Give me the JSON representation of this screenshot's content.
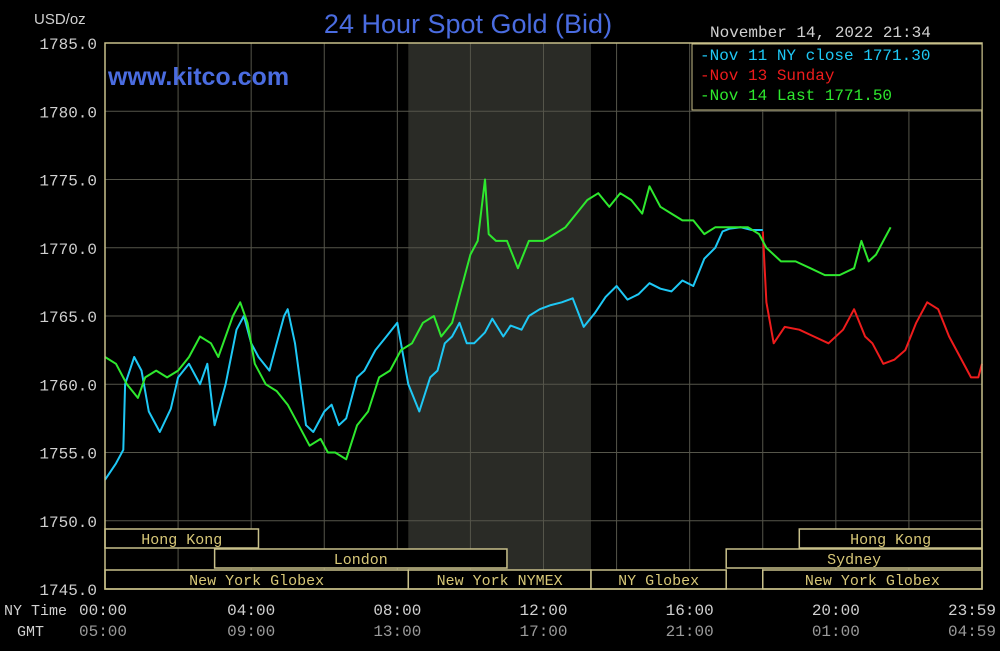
{
  "chart_data": {
    "type": "line",
    "title": "24 Hour Spot Gold (Bid)",
    "unit": "USD/oz",
    "watermark": "www.kitco.com",
    "timestamp": "November 14, 2022 21:34",
    "ylim": [
      1745,
      1785
    ],
    "ytick_labels": [
      "1785.0",
      "1780.0",
      "1775.0",
      "1770.0",
      "1765.0",
      "1760.0",
      "1755.0",
      "1750.0",
      "1745.0"
    ],
    "yticks": [
      1785,
      1780,
      1775,
      1770,
      1765,
      1760,
      1755,
      1750,
      1745
    ],
    "xlim": [
      0,
      24
    ],
    "xticks": [
      0,
      4,
      8,
      12,
      16,
      20,
      24
    ],
    "xtick_labels_ny": [
      "00:00",
      "04:00",
      "08:00",
      "12:00",
      "16:00",
      "20:00",
      "23:59"
    ],
    "xtick_labels_gmt": [
      "05:00",
      "09:00",
      "13:00",
      "17:00",
      "21:00",
      "01:00",
      "04:59"
    ],
    "axis_label_ny": "NY Time",
    "axis_label_gmt": "GMT",
    "legend_position": "top-right",
    "grid": true,
    "colors": {
      "background": "#000000",
      "frame": "#c8c08a",
      "grid": "#55554a",
      "shade": "#2a2b26",
      "title": "#4a6ce0",
      "text": "#d0d0d0"
    },
    "shaded_x": [
      8.3,
      13.3
    ],
    "series": [
      {
        "name": "Nov 11 NY close 1771.30",
        "color": "#1ec8f5",
        "x": [
          0,
          0.3,
          0.5,
          0.55,
          0.8,
          1.0,
          1.2,
          1.5,
          1.8,
          2.0,
          2.3,
          2.6,
          2.8,
          3.0,
          3.1,
          3.3,
          3.6,
          3.8,
          4.0,
          4.2,
          4.5,
          4.7,
          4.9,
          5.0,
          5.2,
          5.5,
          5.7,
          6.0,
          6.2,
          6.4,
          6.6,
          6.9,
          7.1,
          7.4,
          7.7,
          8.0,
          8.3,
          8.6,
          8.9,
          9.1,
          9.3,
          9.5,
          9.7,
          9.9,
          10.1,
          10.4,
          10.6,
          10.9,
          11.1,
          11.4,
          11.6,
          11.9,
          12.2,
          12.5,
          12.8,
          13.1,
          13.4,
          13.7,
          14.0,
          14.3,
          14.6,
          14.9,
          15.2,
          15.5,
          15.8,
          16.1,
          16.4,
          16.7,
          16.9,
          17.1,
          17.4,
          17.7,
          18.0
        ],
        "y": [
          1753.0,
          1754.2,
          1755.2,
          1760.0,
          1762.0,
          1761.0,
          1758.0,
          1756.5,
          1758.2,
          1760.5,
          1761.5,
          1760.0,
          1761.5,
          1757.0,
          1758.0,
          1760.0,
          1764.0,
          1765.0,
          1763.0,
          1762.0,
          1761.0,
          1763.0,
          1765.0,
          1765.5,
          1763.0,
          1757.0,
          1756.5,
          1758.0,
          1758.5,
          1757.0,
          1757.5,
          1760.5,
          1761.0,
          1762.5,
          1763.5,
          1764.5,
          1760.0,
          1758.0,
          1760.5,
          1761.0,
          1763.0,
          1763.5,
          1764.5,
          1763.0,
          1763.0,
          1763.8,
          1764.8,
          1763.5,
          1764.3,
          1764.0,
          1765.0,
          1765.5,
          1765.8,
          1766.0,
          1766.3,
          1764.2,
          1765.2,
          1766.4,
          1767.2,
          1766.2,
          1766.6,
          1767.4,
          1767.0,
          1766.8,
          1767.6,
          1767.2,
          1769.2,
          1770.0,
          1771.2,
          1771.4,
          1771.5,
          1771.3,
          1771.3
        ]
      },
      {
        "name": "Nov 13 Sunday",
        "color": "#ee1c1c",
        "x": [
          18.0,
          18.1,
          18.3,
          18.6,
          19.0,
          19.4,
          19.8,
          20.2,
          20.5,
          20.8,
          21.0,
          21.3,
          21.6,
          21.9,
          22.2,
          22.5,
          22.8,
          23.1,
          23.4,
          23.7,
          23.9,
          24.0
        ],
        "y": [
          1771.2,
          1766.0,
          1763.0,
          1764.2,
          1764.0,
          1763.5,
          1763.0,
          1764.0,
          1765.5,
          1763.5,
          1763.0,
          1761.5,
          1761.8,
          1762.5,
          1764.5,
          1766.0,
          1765.5,
          1763.5,
          1762.0,
          1760.5,
          1760.5,
          1761.5
        ]
      },
      {
        "name": "Nov 14 Last 1771.50",
        "color": "#2ee82e",
        "x": [
          0,
          0.3,
          0.6,
          0.9,
          1.1,
          1.4,
          1.7,
          2.0,
          2.3,
          2.6,
          2.9,
          3.1,
          3.3,
          3.5,
          3.7,
          3.9,
          4.1,
          4.4,
          4.7,
          5.0,
          5.3,
          5.6,
          5.9,
          6.1,
          6.3,
          6.6,
          6.9,
          7.2,
          7.5,
          7.8,
          8.1,
          8.4,
          8.7,
          9.0,
          9.2,
          9.5,
          9.8,
          10.0,
          10.2,
          10.4,
          10.5,
          10.7,
          11.0,
          11.3,
          11.6,
          11.8,
          12.0,
          12.3,
          12.6,
          12.9,
          13.2,
          13.5,
          13.8,
          14.1,
          14.4,
          14.7,
          14.9,
          15.2,
          15.5,
          15.8,
          16.1,
          16.4,
          16.7,
          17.0,
          17.3,
          17.6,
          17.9,
          18.1,
          18.5,
          18.9,
          19.3,
          19.7,
          20.1,
          20.5,
          20.7,
          20.9,
          21.1,
          21.3,
          21.5
        ],
        "y": [
          1762.0,
          1761.5,
          1760.0,
          1759.0,
          1760.5,
          1761.0,
          1760.5,
          1761.0,
          1762.0,
          1763.5,
          1763.0,
          1762.0,
          1763.5,
          1765.0,
          1766.0,
          1764.5,
          1761.5,
          1760.0,
          1759.5,
          1758.5,
          1757.0,
          1755.5,
          1756.0,
          1755.0,
          1755.0,
          1754.5,
          1757.0,
          1758.0,
          1760.5,
          1761.0,
          1762.5,
          1763.0,
          1764.5,
          1765.0,
          1763.5,
          1764.5,
          1767.5,
          1769.5,
          1770.5,
          1775.0,
          1771.0,
          1770.5,
          1770.5,
          1768.5,
          1770.5,
          1770.5,
          1770.5,
          1771.0,
          1771.5,
          1772.5,
          1773.5,
          1774.0,
          1773.0,
          1774.0,
          1773.5,
          1772.5,
          1774.5,
          1773.0,
          1772.5,
          1772.0,
          1772.0,
          1771.0,
          1771.5,
          1771.5,
          1771.5,
          1771.5,
          1771.0,
          1770.0,
          1769.0,
          1769.0,
          1768.5,
          1768.0,
          1768.0,
          1768.5,
          1770.5,
          1769.0,
          1769.5,
          1770.5,
          1771.5
        ]
      }
    ],
    "sessions": [
      {
        "label": "Hong Kong",
        "row": 0,
        "x0": 0,
        "x1": 4.2
      },
      {
        "label": "London",
        "row": 1,
        "x0": 3.0,
        "x1": 11.0
      },
      {
        "label": "New York Globex",
        "row": 2,
        "x0": 0,
        "x1": 8.3
      },
      {
        "label": "New York NYMEX",
        "row": 2,
        "x0": 8.3,
        "x1": 13.3
      },
      {
        "label": "NY Globex",
        "row": 2,
        "x0": 13.3,
        "x1": 17.0
      },
      {
        "label": "Hong Kong",
        "row": 0,
        "x0": 19.0,
        "x1": 24.0
      },
      {
        "label": "Sydney",
        "row": 1,
        "x0": 17.0,
        "x1": 24.0
      },
      {
        "label": "New York Globex",
        "row": 2,
        "x0": 18.0,
        "x1": 24.0
      }
    ]
  }
}
